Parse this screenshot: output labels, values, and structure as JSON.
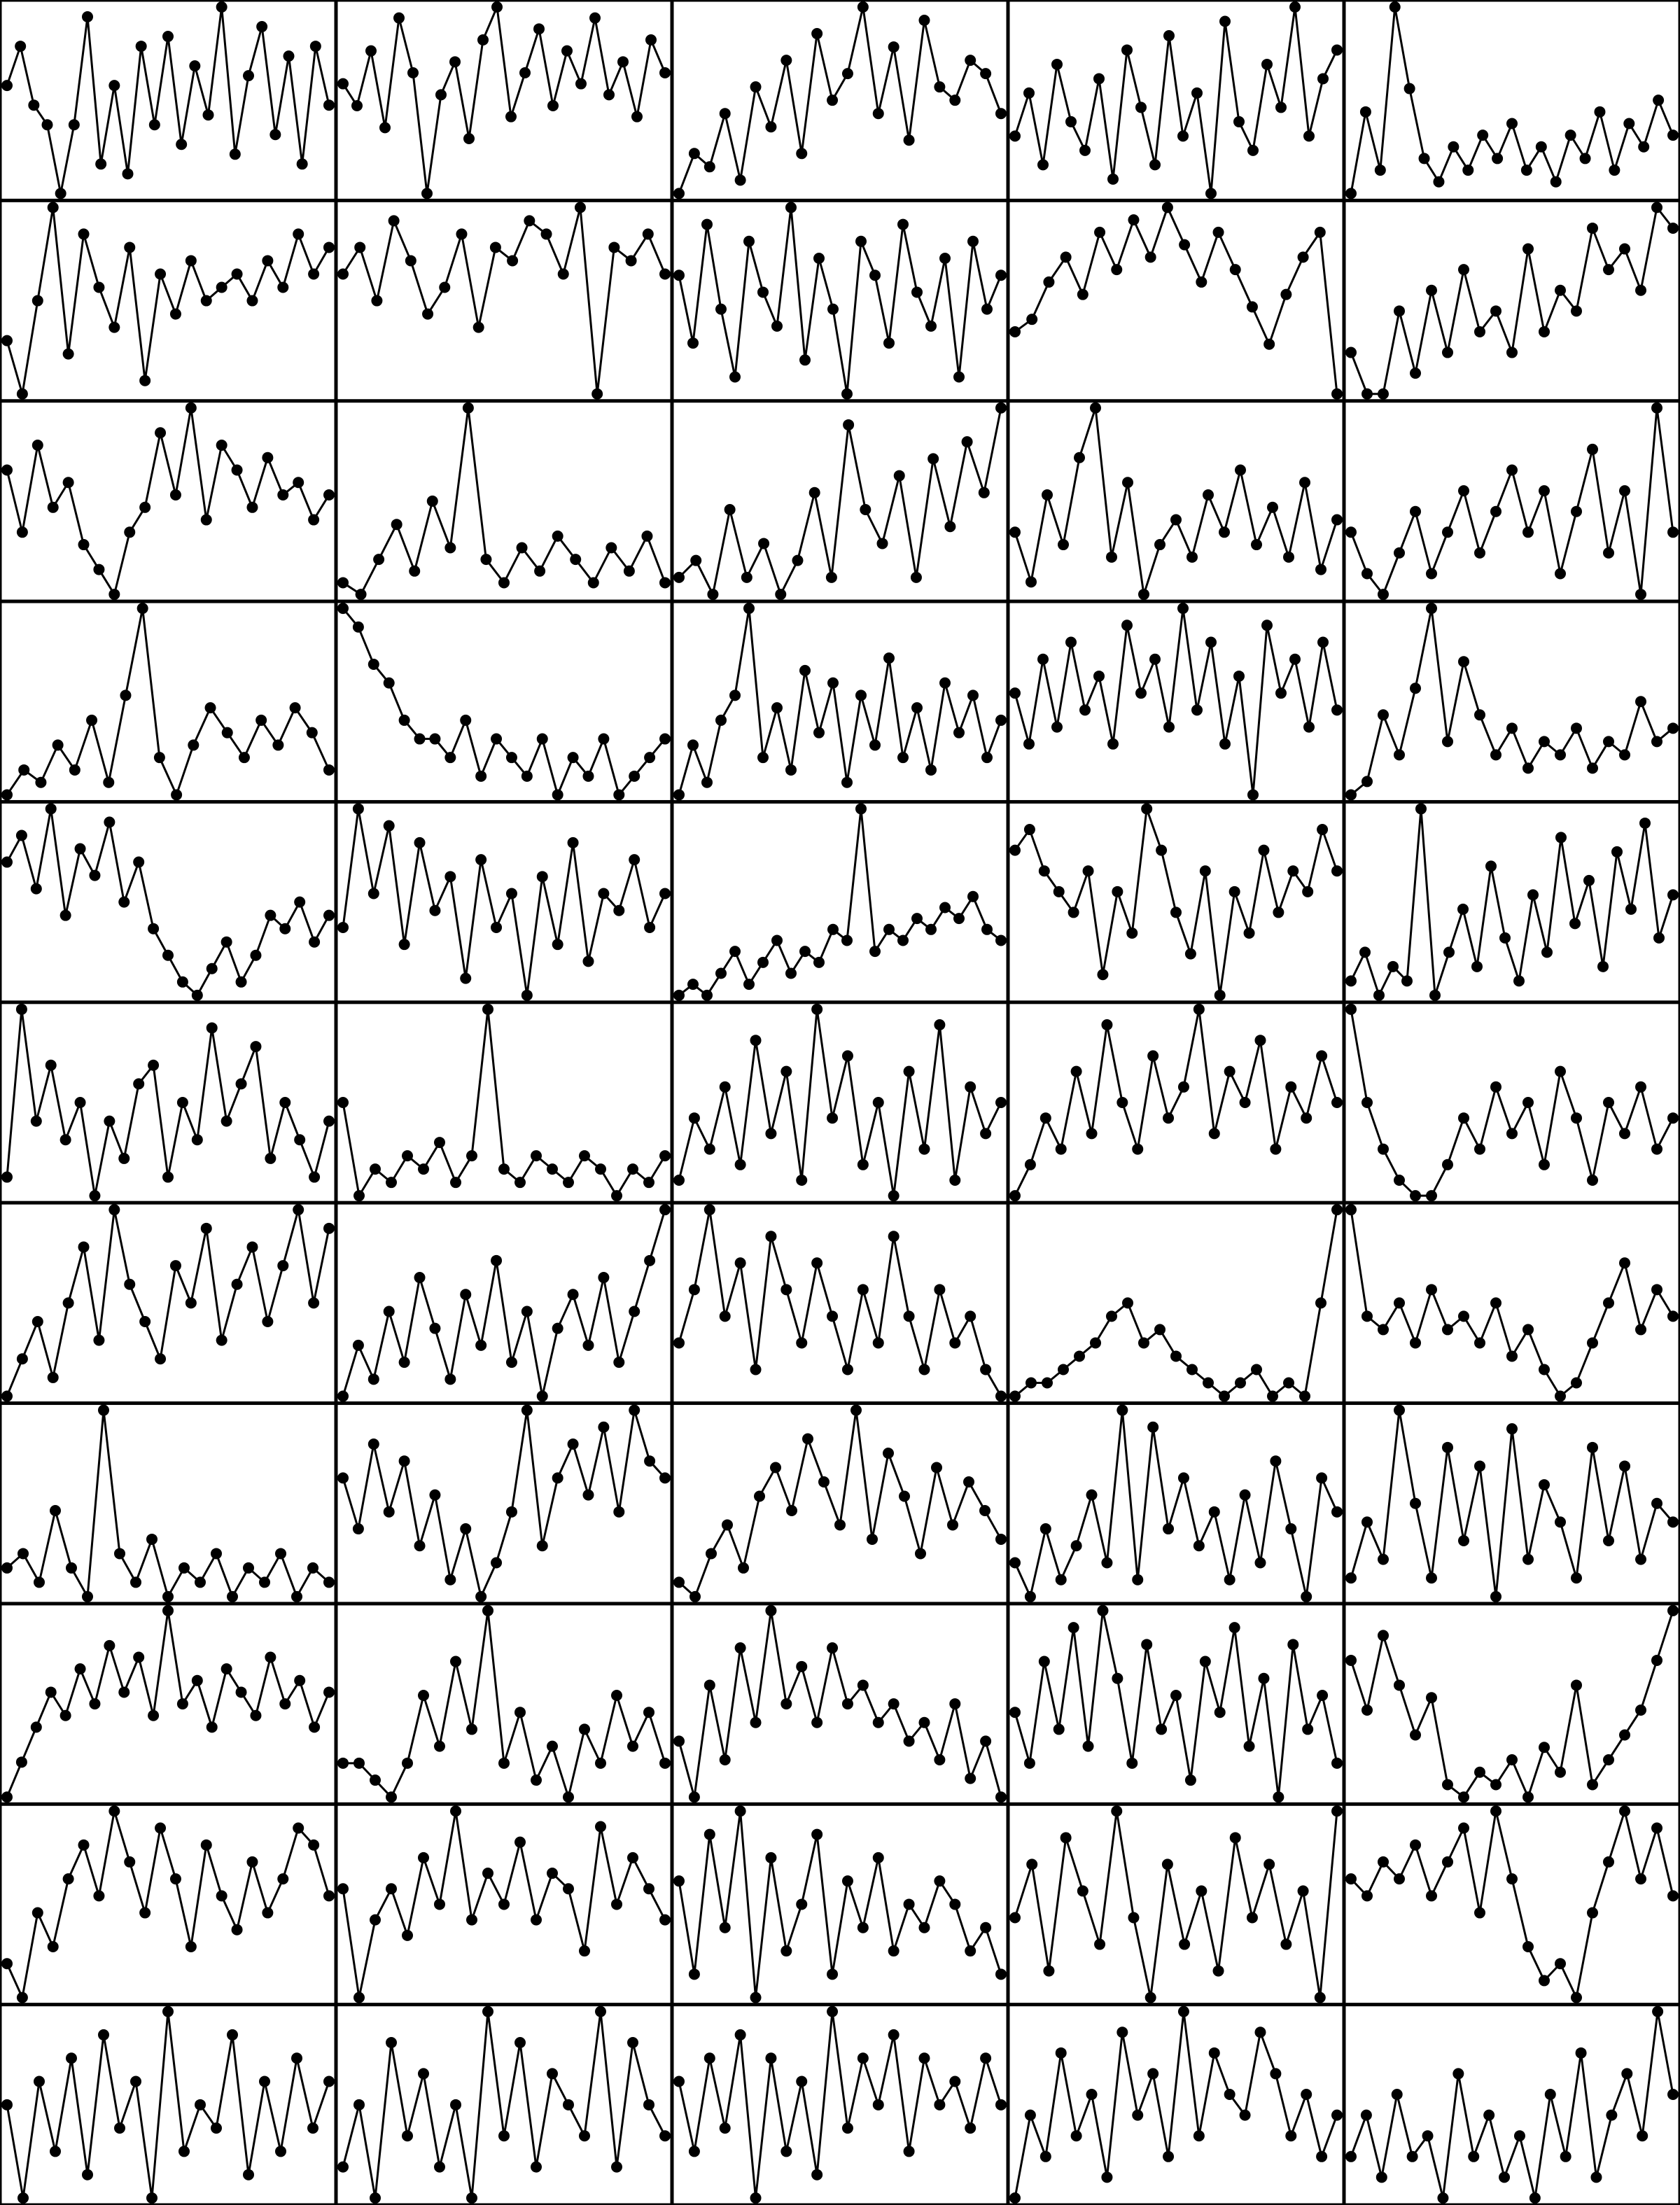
{
  "figure": {
    "rows": 11,
    "cols": 5
  },
  "chart_data": [
    {
      "type": "line",
      "y": [
        12,
        16,
        10,
        8,
        1,
        8,
        19,
        4,
        12,
        3,
        16,
        8,
        17,
        6,
        14,
        9,
        20,
        5,
        13,
        18,
        7,
        15,
        4,
        16,
        10
      ]
    },
    {
      "type": "line",
      "y": [
        11,
        9,
        14,
        7,
        17,
        12,
        1,
        10,
        13,
        6,
        15,
        18,
        8,
        12,
        16,
        9,
        14,
        11,
        17,
        10,
        13,
        8,
        15,
        12
      ]
    },
    {
      "type": "line",
      "y": [
        3,
        6,
        5,
        9,
        4,
        11,
        8,
        13,
        6,
        15,
        10,
        12,
        17,
        9,
        14,
        7,
        16,
        11,
        10,
        13,
        12,
        9
      ]
    },
    {
      "type": "line",
      "y": [
        10,
        13,
        8,
        15,
        11,
        9,
        14,
        7,
        16,
        12,
        8,
        17,
        10,
        13,
        6,
        18,
        11,
        9,
        15,
        12,
        19,
        10,
        14,
        16
      ]
    },
    {
      "type": "line",
      "y": [
        4,
        11,
        6,
        20,
        13,
        7,
        5,
        8,
        6,
        9,
        7,
        10,
        6,
        8,
        5,
        9,
        7,
        11,
        6,
        10,
        8,
        12,
        9
      ]
    },
    {
      "type": "line",
      "y": [
        6,
        2,
        9,
        16,
        5,
        14,
        10,
        7,
        13,
        3,
        11,
        8,
        12,
        9,
        10,
        11,
        9,
        12,
        10,
        14,
        11,
        13
      ]
    },
    {
      "type": "line",
      "y": [
        11,
        13,
        9,
        15,
        12,
        8,
        10,
        14,
        7,
        13,
        12,
        15,
        14,
        11,
        16,
        2,
        13,
        12,
        14,
        11
      ]
    },
    {
      "type": "line",
      "y": [
        12,
        8,
        15,
        10,
        6,
        14,
        11,
        9,
        16,
        7,
        13,
        10,
        5,
        14,
        12,
        8,
        15,
        11,
        9,
        13,
        6,
        14,
        10,
        12
      ]
    },
    {
      "type": "line",
      "y": [
        6,
        7,
        10,
        12,
        9,
        14,
        11,
        15,
        12,
        16,
        13,
        10,
        14,
        11,
        8,
        5,
        9,
        12,
        14,
        1
      ]
    },
    {
      "type": "line",
      "y": [
        9,
        7,
        7,
        11,
        8,
        12,
        9,
        13,
        10,
        11,
        9,
        14,
        10,
        12,
        11,
        15,
        13,
        14,
        12,
        16,
        15
      ]
    },
    {
      "type": "line",
      "y": [
        12,
        7,
        14,
        9,
        11,
        6,
        4,
        2,
        7,
        9,
        15,
        10,
        17,
        8,
        14,
        12,
        9,
        13,
        10,
        11,
        8,
        10
      ]
    },
    {
      "type": "line",
      "y": [
        3,
        2,
        5,
        8,
        4,
        10,
        6,
        18,
        5,
        3,
        6,
        4,
        7,
        5,
        3,
        6,
        4,
        7,
        3
      ]
    },
    {
      "type": "line",
      "y": [
        4,
        5,
        3,
        8,
        4,
        6,
        3,
        5,
        9,
        4,
        13,
        8,
        6,
        10,
        4,
        11,
        7,
        12,
        9,
        14
      ]
    },
    {
      "type": "line",
      "y": [
        7,
        3,
        10,
        6,
        13,
        17,
        5,
        11,
        2,
        6,
        8,
        5,
        10,
        7,
        12,
        6,
        9,
        5,
        11,
        4,
        8
      ]
    },
    {
      "type": "line",
      "y": [
        8,
        6,
        5,
        7,
        9,
        6,
        8,
        10,
        7,
        9,
        11,
        8,
        10,
        6,
        9,
        12,
        7,
        10,
        5,
        14,
        8
      ]
    },
    {
      "type": "line",
      "y": [
        2,
        4,
        3,
        6,
        4,
        8,
        3,
        10,
        17,
        5,
        2,
        6,
        9,
        7,
        5,
        8,
        6,
        9,
        7,
        4
      ]
    },
    {
      "type": "line",
      "y": [
        16,
        15,
        13,
        12,
        10,
        9,
        9,
        8,
        10,
        7,
        9,
        8,
        7,
        9,
        6,
        8,
        7,
        9,
        6,
        7,
        8,
        9
      ]
    },
    {
      "type": "line",
      "y": [
        3,
        7,
        4,
        9,
        11,
        18,
        6,
        10,
        5,
        13,
        8,
        12,
        4,
        11,
        7,
        14,
        6,
        10,
        5,
        12,
        8,
        11,
        6,
        9
      ]
    },
    {
      "type": "line",
      "y": [
        12,
        9,
        14,
        10,
        15,
        11,
        13,
        9,
        16,
        12,
        14,
        10,
        17,
        11,
        15,
        9,
        13,
        6,
        16,
        12,
        14,
        10,
        15,
        11
      ]
    },
    {
      "type": "line",
      "y": [
        2,
        3,
        8,
        5,
        10,
        16,
        6,
        12,
        8,
        5,
        7,
        4,
        6,
        5,
        7,
        4,
        6,
        5,
        9,
        6,
        7
      ]
    },
    {
      "type": "line",
      "y": [
        13,
        15,
        11,
        17,
        9,
        14,
        12,
        16,
        10,
        13,
        8,
        6,
        4,
        3,
        5,
        7,
        4,
        6,
        9,
        8,
        10,
        7,
        9
      ]
    },
    {
      "type": "line",
      "y": [
        9,
        16,
        11,
        15,
        8,
        14,
        10,
        12,
        6,
        13,
        9,
        11,
        5,
        12,
        8,
        14,
        7,
        11,
        10,
        13,
        9,
        11
      ]
    },
    {
      "type": "line",
      "y": [
        3,
        4,
        3,
        5,
        7,
        4,
        6,
        8,
        5,
        7,
        6,
        9,
        8,
        20,
        7,
        9,
        8,
        10,
        9,
        11,
        10,
        12,
        9,
        8
      ]
    },
    {
      "type": "line",
      "y": [
        12,
        13,
        11,
        10,
        9,
        11,
        6,
        10,
        8,
        14,
        12,
        9,
        7,
        11,
        5,
        10,
        8,
        12,
        9,
        11,
        10,
        13,
        11
      ]
    },
    {
      "type": "line",
      "y": [
        4,
        6,
        3,
        5,
        4,
        16,
        3,
        6,
        9,
        5,
        12,
        7,
        4,
        10,
        6,
        14,
        8,
        11,
        5,
        13,
        9,
        15,
        7,
        10
      ]
    },
    {
      "type": "line",
      "y": [
        7,
        16,
        10,
        13,
        9,
        11,
        6,
        10,
        8,
        12,
        13,
        7,
        11,
        9,
        15,
        10,
        12,
        14,
        8,
        11,
        9,
        7,
        10
      ]
    },
    {
      "type": "line",
      "y": [
        10,
        3,
        5,
        4,
        6,
        5,
        7,
        4,
        6,
        17,
        5,
        4,
        6,
        5,
        4,
        6,
        5,
        3,
        5,
        4,
        6
      ]
    },
    {
      "type": "line",
      "y": [
        5,
        9,
        7,
        11,
        6,
        14,
        8,
        12,
        5,
        16,
        9,
        13,
        6,
        10,
        4,
        12,
        7,
        15,
        5,
        11,
        8,
        10
      ]
    },
    {
      "type": "line",
      "y": [
        4,
        6,
        9,
        7,
        12,
        8,
        15,
        10,
        7,
        13,
        9,
        11,
        16,
        8,
        12,
        10,
        14,
        7,
        11,
        9,
        13,
        10
      ]
    },
    {
      "type": "line",
      "y": [
        16,
        10,
        7,
        5,
        4,
        4,
        6,
        9,
        7,
        11,
        8,
        10,
        6,
        12,
        9,
        5,
        10,
        8,
        11,
        7,
        9
      ]
    },
    {
      "type": "line",
      "y": [
        4,
        6,
        8,
        5,
        9,
        12,
        7,
        14,
        10,
        8,
        6,
        11,
        9,
        13,
        7,
        10,
        12,
        8,
        11,
        14,
        9,
        13
      ]
    },
    {
      "type": "line",
      "y": [
        5,
        8,
        6,
        10,
        7,
        12,
        9,
        6,
        11,
        8,
        13,
        7,
        10,
        5,
        9,
        11,
        8,
        12,
        7,
        10,
        13,
        16
      ]
    },
    {
      "type": "line",
      "y": [
        10,
        12,
        15,
        11,
        13,
        9,
        14,
        12,
        10,
        13,
        11,
        9,
        12,
        10,
        14,
        11,
        9,
        12,
        10,
        11,
        9,
        8
      ]
    },
    {
      "type": "line",
      "y": [
        2,
        3,
        3,
        4,
        5,
        6,
        8,
        9,
        6,
        7,
        5,
        4,
        3,
        2,
        3,
        4,
        2,
        3,
        2,
        9,
        16
      ]
    },
    {
      "type": "line",
      "y": [
        16,
        8,
        7,
        9,
        6,
        10,
        7,
        8,
        6,
        9,
        5,
        7,
        4,
        2,
        3,
        6,
        9,
        12,
        7,
        10,
        8
      ]
    },
    {
      "type": "line",
      "y": [
        7,
        8,
        6,
        11,
        7,
        5,
        18,
        8,
        6,
        9,
        5,
        7,
        6,
        8,
        5,
        7,
        6,
        8,
        5,
        7,
        6
      ]
    },
    {
      "type": "line",
      "y": [
        12,
        9,
        14,
        10,
        13,
        8,
        11,
        6,
        9,
        5,
        7,
        10,
        16,
        8,
        12,
        14,
        11,
        15,
        10,
        16,
        13,
        12
      ]
    },
    {
      "type": "line",
      "y": [
        3,
        2,
        5,
        7,
        4,
        9,
        11,
        8,
        13,
        10,
        7,
        15,
        6,
        12,
        9,
        5,
        11,
        7,
        10,
        8,
        6
      ]
    },
    {
      "type": "line",
      "y": [
        6,
        4,
        8,
        5,
        7,
        10,
        6,
        15,
        5,
        14,
        8,
        11,
        7,
        9,
        5,
        10,
        6,
        12,
        8,
        4,
        11,
        9
      ]
    },
    {
      "type": "line",
      "y": [
        6,
        9,
        7,
        15,
        10,
        6,
        13,
        8,
        12,
        5,
        14,
        7,
        11,
        9,
        6,
        13,
        8,
        12,
        7,
        10,
        9
      ]
    },
    {
      "type": "line",
      "y": [
        1,
        4,
        7,
        10,
        8,
        12,
        9,
        14,
        10,
        13,
        8,
        17,
        9,
        11,
        7,
        12,
        10,
        8,
        13,
        9,
        11,
        7,
        10
      ]
    },
    {
      "type": "line",
      "y": [
        9,
        9,
        8,
        7,
        9,
        13,
        10,
        15,
        11,
        18,
        9,
        12,
        8,
        10,
        7,
        11,
        9,
        13,
        10,
        12,
        9
      ]
    },
    {
      "type": "line",
      "y": [
        9,
        6,
        12,
        8,
        14,
        10,
        16,
        11,
        13,
        10,
        14,
        11,
        12,
        10,
        11,
        9,
        10,
        8,
        11,
        7,
        9,
        6
      ]
    },
    {
      "type": "line",
      "y": [
        10,
        7,
        13,
        9,
        15,
        8,
        16,
        12,
        7,
        14,
        9,
        11,
        6,
        13,
        10,
        15,
        8,
        12,
        5,
        14,
        9,
        11,
        7
      ]
    },
    {
      "type": "line",
      "y": [
        14,
        10,
        16,
        12,
        8,
        11,
        4,
        3,
        5,
        4,
        6,
        3,
        7,
        5,
        12,
        4,
        6,
        8,
        10,
        14,
        18
      ]
    },
    {
      "type": "line",
      "y": [
        5,
        3,
        8,
        6,
        10,
        12,
        9,
        14,
        11,
        8,
        13,
        10,
        6,
        12,
        9,
        7,
        11,
        8,
        10,
        13,
        12,
        9
      ]
    },
    {
      "type": "line",
      "y": [
        9,
        2,
        7,
        9,
        6,
        11,
        8,
        14,
        7,
        10,
        8,
        12,
        7,
        10,
        9,
        5,
        13,
        8,
        11,
        9,
        7
      ]
    },
    {
      "type": "line",
      "y": [
        12,
        8,
        14,
        10,
        15,
        7,
        13,
        9,
        11,
        14,
        8,
        12,
        10,
        13,
        9,
        11,
        10,
        12,
        11,
        9,
        10,
        8
      ]
    },
    {
      "type": "line",
      "y": [
        10,
        12,
        8,
        13,
        11,
        9,
        14,
        10,
        7,
        12,
        9,
        11,
        8,
        13,
        10,
        12,
        9,
        11,
        7,
        14
      ]
    },
    {
      "type": "line",
      "y": [
        10,
        9,
        11,
        10,
        12,
        9,
        11,
        13,
        8,
        14,
        10,
        6,
        4,
        5,
        3,
        8,
        11,
        14,
        10,
        13,
        9
      ]
    },
    {
      "type": "line",
      "y": [
        11,
        7,
        12,
        9,
        13,
        8,
        14,
        10,
        12,
        7,
        15,
        9,
        11,
        10,
        14,
        8,
        12,
        9,
        13,
        10,
        12
      ]
    },
    {
      "type": "line",
      "y": [
        10,
        12,
        9,
        14,
        11,
        13,
        10,
        12,
        9,
        15,
        11,
        14,
        10,
        13,
        12,
        11,
        15,
        10,
        14,
        12,
        11
      ]
    },
    {
      "type": "line",
      "y": [
        11,
        8,
        12,
        9,
        13,
        6,
        12,
        8,
        11,
        7,
        14,
        9,
        12,
        10,
        13,
        8,
        12,
        10,
        11,
        9,
        12,
        10
      ]
    },
    {
      "type": "line",
      "y": [
        7,
        11,
        9,
        14,
        10,
        12,
        8,
        15,
        11,
        13,
        9,
        16,
        10,
        14,
        12,
        11,
        15,
        13,
        10,
        12,
        9,
        11
      ]
    },
    {
      "type": "line",
      "y": [
        9,
        11,
        8,
        12,
        9,
        10,
        7,
        13,
        9,
        11,
        8,
        10,
        7,
        12,
        9,
        14,
        8,
        11,
        13,
        10,
        16,
        12
      ]
    }
  ]
}
